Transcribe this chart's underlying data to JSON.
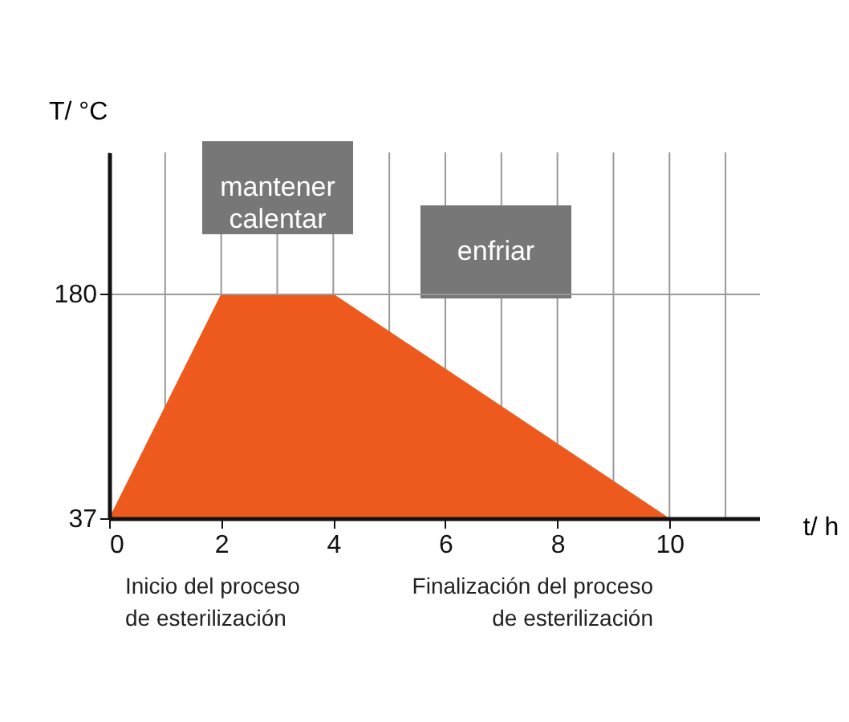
{
  "chart_data": {
    "type": "area",
    "xlabel": "t/ h",
    "ylabel": "T/ °C",
    "x": [
      0,
      2,
      4,
      10
    ],
    "series": [
      {
        "color": "#ee5a1e",
        "values": [
          37,
          180,
          180,
          37
        ]
      }
    ],
    "xlim": [
      0,
      11.6
    ],
    "xticks": [
      0,
      {
        "value": 1,
        "label": null
      },
      2,
      {
        "value": 3,
        "label": null
      },
      4,
      {
        "value": 5,
        "label": null
      },
      6,
      {
        "value": 7,
        "label": null
      },
      8,
      {
        "value": 9,
        "label": null
      },
      10,
      {
        "value": 11,
        "label": null
      }
    ],
    "ylim": [
      37,
      270
    ],
    "yticks": [
      37,
      180
    ],
    "grid": true,
    "annotations": [
      "mantener calentar",
      "enfriar",
      "Inicio del proceso de esterilización",
      "Finalización del proceso de esterilización"
    ]
  }
}
